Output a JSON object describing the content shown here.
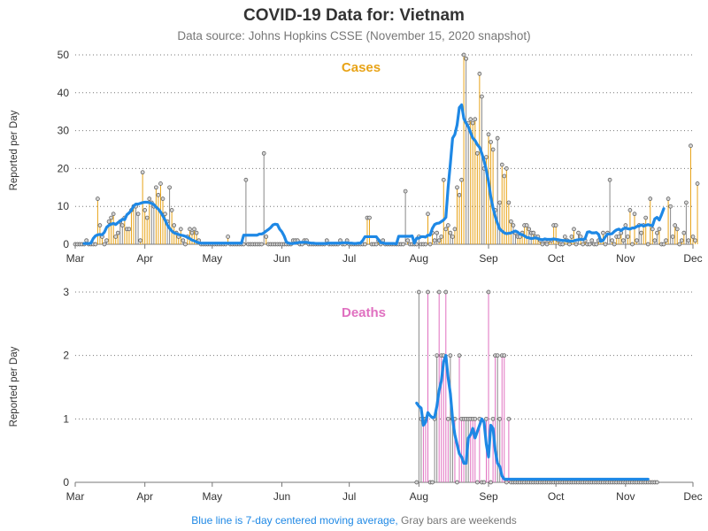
{
  "page": {
    "title": "COVID-19 Data for: Vietnam",
    "subtitle": "Data source: Johns Hopkins CSSE (November 15, 2020 snapshot)",
    "footnote_blue": "Blue line is 7-day centered moving average,",
    "footnote_gray": " Gray bars are weekends"
  },
  "colors": {
    "cases": "#e8a317",
    "deaths": "#e070c0",
    "weekend": "#888888",
    "average": "#1e88e5",
    "footnote_gray": "#777777",
    "marker_fill": "#d3d3d3"
  },
  "chart_data": [
    {
      "type": "bar",
      "title": "Cases",
      "ylabel": "Reported per Day",
      "ylim": [
        0,
        50
      ],
      "yticks": [
        0,
        10,
        20,
        30,
        40,
        50
      ],
      "xlim": [
        "2020-03-01",
        "2020-12-01"
      ],
      "xticks": [
        "Mar",
        "Apr",
        "May",
        "Jun",
        "Jul",
        "Aug",
        "Sep",
        "Oct",
        "Nov",
        "Dec"
      ],
      "grid": "horizontal-dotted",
      "series": [
        {
          "type": "bar-lollipop",
          "start_date": "2020-03-01",
          "values": [
            0,
            0,
            0,
            0,
            0,
            1,
            0,
            0,
            0,
            0,
            12,
            5,
            2,
            0,
            1,
            6,
            7,
            8,
            2,
            3,
            6,
            5,
            7,
            4,
            4,
            9,
            10,
            10,
            8,
            1,
            19,
            9,
            7,
            12,
            11,
            10,
            15,
            13,
            16,
            12,
            8,
            6,
            15,
            9,
            5,
            3,
            2,
            4,
            1,
            0,
            2,
            4,
            3,
            4,
            3,
            1,
            0,
            0,
            0,
            0,
            0,
            0,
            0,
            0,
            0,
            0,
            0,
            0,
            2,
            0,
            0,
            0,
            0,
            0,
            0,
            0,
            17,
            0,
            0,
            0,
            0,
            0,
            0,
            0,
            24,
            2,
            0,
            0,
            0,
            0,
            0,
            0,
            0,
            0,
            0,
            0,
            0,
            1,
            1,
            1,
            0,
            0,
            1,
            1,
            0,
            0,
            0,
            0,
            0,
            0,
            0,
            0,
            1,
            0,
            0,
            0,
            0,
            0,
            1,
            0,
            0,
            1,
            0,
            0,
            0,
            0,
            0,
            0,
            0,
            0,
            7,
            7,
            0,
            0,
            0,
            1,
            0,
            1,
            0,
            0,
            0,
            0,
            0,
            0,
            0,
            0,
            0,
            14,
            1,
            0,
            0,
            0,
            0,
            2,
            0,
            0,
            0,
            8,
            0,
            3,
            1,
            3,
            1,
            2,
            17,
            4,
            5,
            3,
            2,
            4,
            15,
            13,
            17,
            50,
            49,
            32,
            33,
            32,
            33,
            24,
            45,
            39,
            20,
            23,
            29,
            27,
            25,
            9,
            28,
            11,
            21,
            18,
            20,
            11,
            6,
            5,
            3,
            2,
            2,
            3,
            5,
            5,
            4,
            3,
            3,
            2,
            2,
            1,
            0,
            1,
            0,
            1,
            1,
            5,
            5,
            1,
            0,
            0,
            2,
            1,
            0,
            2,
            4,
            0,
            3,
            2,
            0,
            1,
            0,
            0,
            1,
            0,
            0,
            1,
            1,
            3,
            0,
            3,
            17,
            1,
            0,
            2,
            2,
            3,
            1,
            5,
            2,
            9,
            0,
            8,
            1,
            5,
            3,
            5,
            7,
            0,
            12,
            4,
            1,
            3,
            4,
            0,
            0,
            1,
            12,
            10,
            2,
            5,
            4,
            0,
            1,
            3,
            11,
            1,
            26,
            2,
            1,
            16
          ]
        },
        {
          "type": "line",
          "start_date": "2020-03-05",
          "values": [
            0.2,
            0.2,
            0.2,
            0.3,
            1.5,
            2.2,
            2.5,
            2.6,
            2.5,
            3.2,
            4.5,
            5.0,
            5.3,
            5.5,
            5.2,
            5.7,
            6.1,
            6.6,
            6.5,
            7.8,
            8.3,
            9.0,
            10.1,
            10.6,
            10.6,
            10.8,
            11.0,
            11.1,
            11.1,
            11.0,
            10.8,
            10.5,
            9.8,
            9.3,
            8.5,
            7.5,
            6.4,
            5.1,
            4.2,
            3.5,
            3.0,
            2.8,
            2.6,
            2.4,
            2.3,
            2.1,
            1.8,
            1.5,
            1.1,
            0.9,
            0.6,
            0.4,
            0.3,
            0.3,
            0.3,
            0.3,
            0.3,
            0.3,
            0.3,
            0.3,
            0.3,
            0.3,
            0.3,
            0.3,
            0.3,
            0.3,
            0.3,
            0.3,
            0.3,
            0.3,
            0.3,
            2.4,
            2.4,
            2.4,
            2.4,
            2.4,
            2.4,
            2.4,
            2.7,
            2.7,
            3.0,
            3.5,
            3.9,
            4.4,
            5.1,
            5.3,
            5.2,
            4.0,
            3.3,
            2.2,
            0.6,
            0.3,
            0.2,
            0.2,
            0.3,
            0.4,
            0.5,
            0.5,
            0.5,
            0.5,
            0.4,
            0.3,
            0.3,
            0.2,
            0.2,
            0.2,
            0.2,
            0.2,
            0.2,
            0.3,
            0.3,
            0.3,
            0.3,
            0.3,
            0.3,
            0.4,
            0.4,
            0.4,
            0.3,
            0.3,
            0.2,
            0.2,
            0.3,
            0.3,
            1.0,
            2.0,
            2.0,
            2.0,
            2.0,
            2.0,
            2.0,
            1.2,
            0.4,
            0.4,
            0.2,
            0.2,
            0.2,
            0.2,
            0.2,
            0.1,
            2.1,
            2.1,
            2.1,
            2.1,
            2.1,
            2.1,
            2.2,
            0.3,
            1.6,
            1.6,
            2.0,
            2.0,
            1.9,
            2.4,
            2.4,
            4.2,
            5.2,
            5.5,
            5.6,
            6.0,
            6.4,
            7.1,
            15.0,
            21.3,
            28.0,
            29.0,
            31.5,
            36.1,
            36.8,
            33.2,
            32.0,
            31.0,
            29.5,
            28.0,
            27.4,
            26.3,
            25.6,
            24.0,
            22.0,
            19.6,
            16.5,
            12.5,
            9.6,
            7.3,
            5.5,
            4.0,
            3.5,
            3.0,
            2.8,
            2.9,
            3.0,
            3.3,
            3.5,
            3.2,
            2.7,
            2.5,
            2.2,
            1.8,
            1.7,
            1.5,
            1.6,
            1.7,
            1.5,
            1.3,
            1.2,
            1.4,
            1.3,
            1.3,
            1.3,
            1.4,
            1.3,
            1.2,
            1.1,
            1.0,
            1.0,
            0.9,
            0.9,
            0.8,
            0.9,
            1.1,
            1.2,
            1.3,
            1.2,
            1.5,
            3.2,
            3.3,
            3.0,
            3.0,
            3.1,
            2.6,
            0.8,
            1.0,
            2.0,
            2.7,
            2.7,
            2.8,
            3.4,
            3.8,
            4.0,
            3.6,
            4.1,
            4.3,
            4.1,
            4.0,
            4.3,
            4.3,
            4.7,
            4.8,
            5.1,
            4.8,
            5.0,
            5.2,
            5.0,
            4.9,
            6.7,
            7.1,
            6.4,
            7.8,
            9.4
          ]
        }
      ]
    },
    {
      "type": "bar",
      "title": "Deaths",
      "ylabel": "Reported per Day",
      "ylim": [
        0,
        3
      ],
      "yticks": [
        0,
        1,
        2,
        3
      ],
      "xlim": [
        "2020-03-01",
        "2020-12-01"
      ],
      "xticks": [
        "Mar",
        "Apr",
        "May",
        "Jun",
        "Jul",
        "Aug",
        "Sep",
        "Oct",
        "Nov",
        "Dec"
      ],
      "grid": "horizontal-dotted",
      "series": [
        {
          "type": "bar-lollipop",
          "start_date": "2020-07-31",
          "values": [
            0,
            3,
            1,
            1,
            1,
            3,
            0,
            0,
            1,
            2,
            3,
            2,
            2,
            3,
            1,
            2,
            1,
            1,
            0,
            2,
            1,
            1,
            1,
            1,
            1,
            1,
            1,
            0,
            1,
            0,
            0,
            1,
            3,
            0,
            1,
            2,
            2,
            1,
            2,
            2,
            0,
            1,
            0,
            0,
            0,
            0,
            0,
            0,
            0,
            0,
            0,
            0,
            0,
            0,
            0,
            0,
            0,
            0,
            0,
            0,
            0,
            0,
            0,
            0,
            0,
            0,
            0,
            0,
            0,
            0,
            0,
            0,
            0,
            0,
            0,
            0,
            0,
            0,
            0,
            0,
            0,
            0,
            0,
            0,
            0,
            0,
            0,
            0,
            0,
            0,
            0,
            0,
            0,
            0,
            0,
            0,
            0,
            0,
            0,
            0,
            0,
            0,
            0,
            0,
            0,
            0,
            0,
            0
          ]
        },
        {
          "type": "line",
          "start_date": "2020-07-31",
          "values": [
            1.25,
            1.2,
            1.17,
            0.9,
            0.95,
            1.1,
            1.05,
            1.02,
            1.03,
            1.2,
            1.45,
            1.6,
            1.9,
            2.0,
            1.65,
            1.4,
            1.0,
            0.75,
            0.6,
            0.45,
            0.4,
            0.3,
            0.3,
            0.7,
            0.75,
            0.85,
            0.7,
            0.8,
            0.9,
            1.0,
            0.95,
            0.6,
            0.4,
            0.9,
            0.85,
            0.5,
            0.3,
            0.25,
            0.1,
            0.05,
            0.05,
            0.05,
            0.05,
            0.05,
            0.05,
            0.05,
            0.05,
            0.05,
            0.05,
            0.05,
            0.05,
            0.05,
            0.05,
            0.05,
            0.05,
            0.05,
            0.05,
            0.05,
            0.05,
            0.05,
            0.05,
            0.05,
            0.05,
            0.05,
            0.05,
            0.05,
            0.05,
            0.05,
            0.05,
            0.05,
            0.05,
            0.05,
            0.05,
            0.05,
            0.05,
            0.05,
            0.05,
            0.05,
            0.05,
            0.05,
            0.05,
            0.05,
            0.05,
            0.05,
            0.05,
            0.05,
            0.05,
            0.05,
            0.05,
            0.05,
            0.05,
            0.05,
            0.05,
            0.05,
            0.05,
            0.05,
            0.05,
            0.05,
            0.05,
            0.05,
            0.05,
            0.05,
            0.05,
            0.05
          ]
        }
      ]
    }
  ]
}
